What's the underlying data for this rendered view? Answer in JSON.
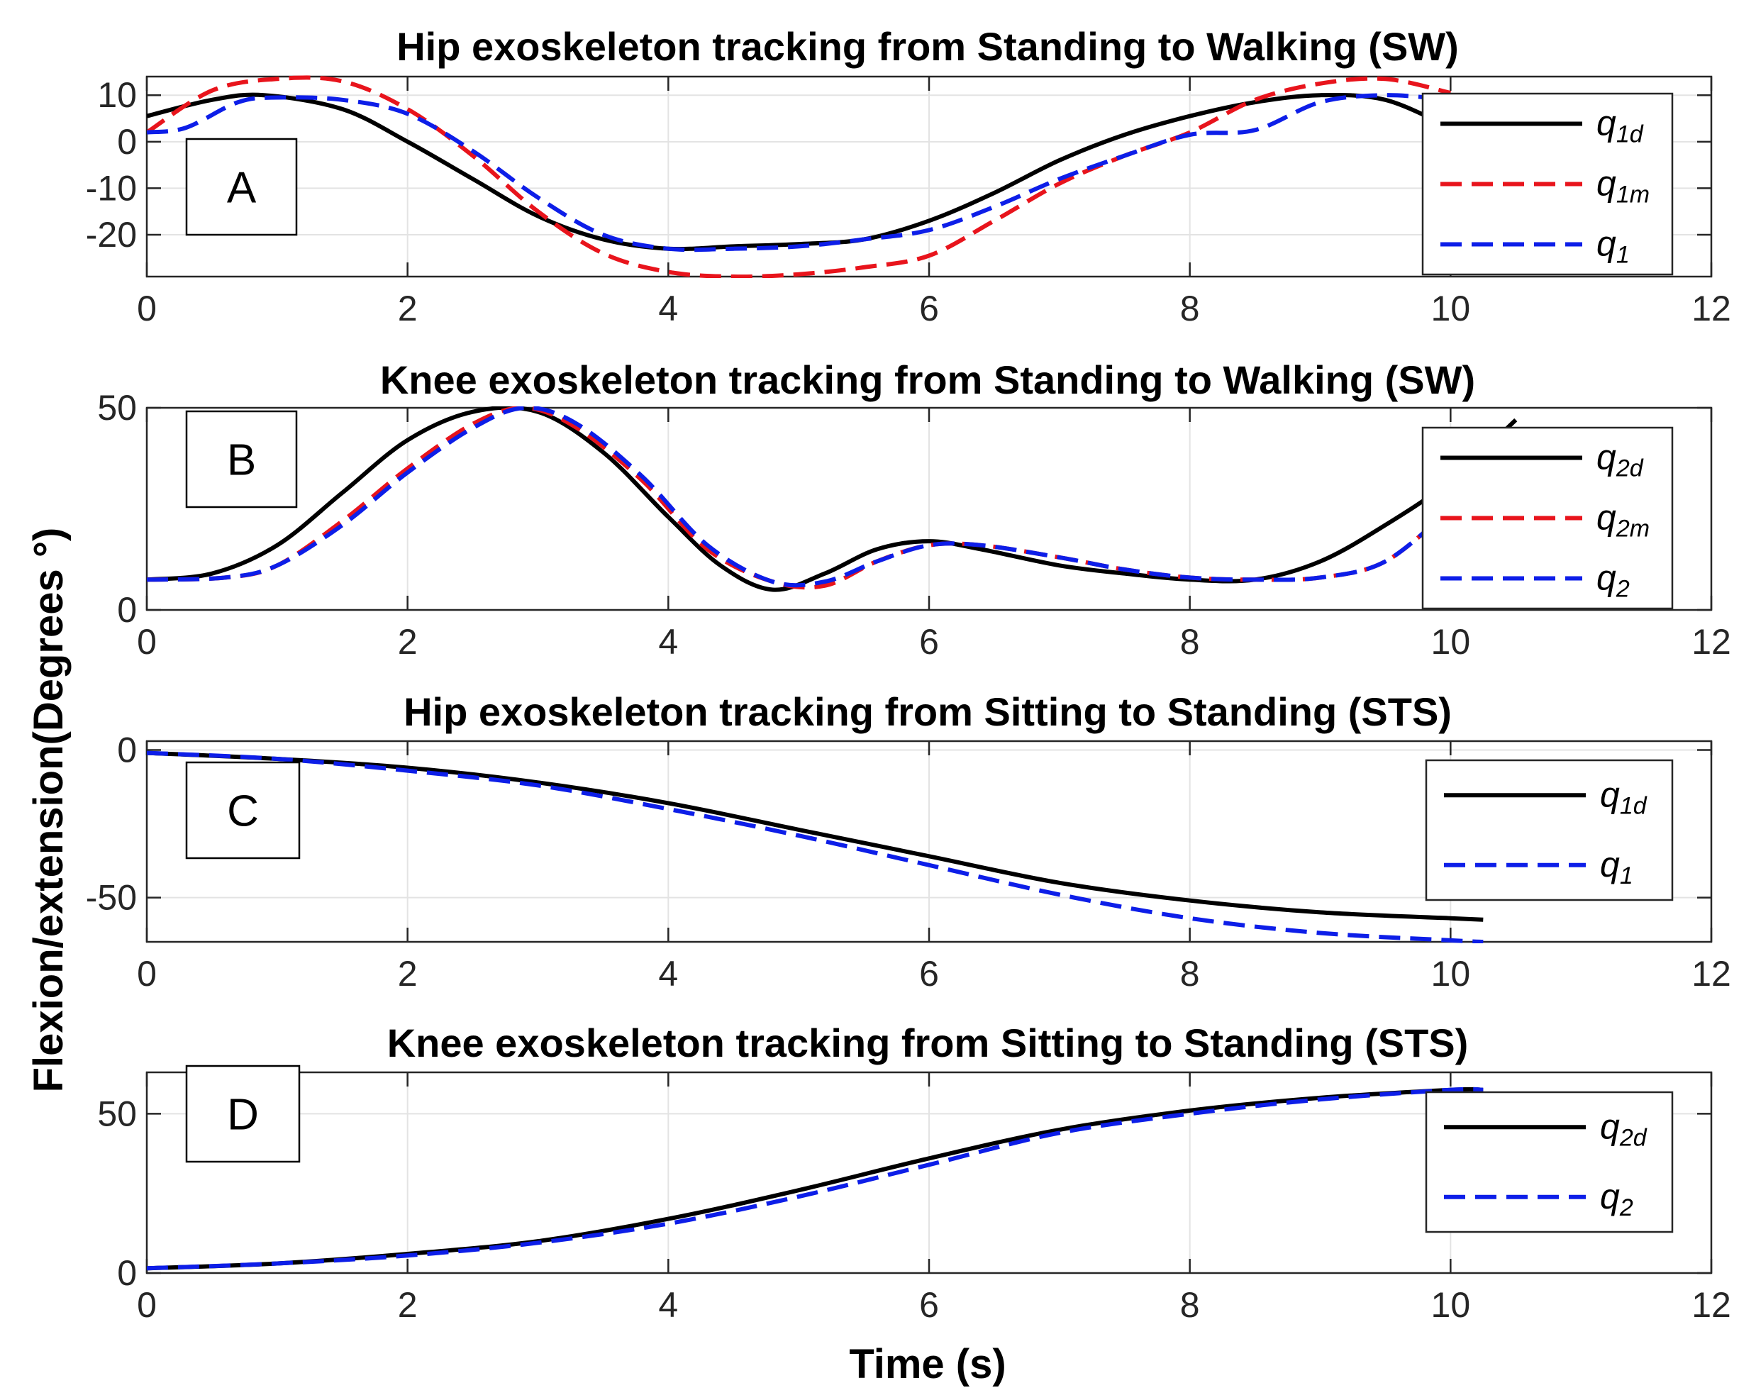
{
  "figure": {
    "xlabel": "Time (s)",
    "ylabel": "Flexion/extension(Degrees °)"
  },
  "chart_data": [
    {
      "type": "line",
      "panel": "A",
      "title": "Hip exoskeleton tracking from Standing to Walking (SW)",
      "xlim": [
        0,
        12
      ],
      "ylim": [
        -29,
        14
      ],
      "xticks": [
        0,
        2,
        4,
        6,
        8,
        10,
        12
      ],
      "yticks": [
        -20,
        -10,
        0,
        10
      ],
      "grid": true,
      "legend_position": "right",
      "series": [
        {
          "name": "q1d",
          "sym": "q",
          "sub": "1d",
          "color": "#000000",
          "dash": false,
          "x": [
            0,
            0.5,
            0.9,
            1.5,
            2,
            2.5,
            3,
            3.5,
            4,
            4.5,
            5,
            5.5,
            6,
            6.5,
            7,
            7.5,
            8,
            8.5,
            9,
            9.5,
            10
          ],
          "y": [
            5.5,
            9,
            10,
            7,
            0,
            -8,
            -16,
            -21,
            -23,
            -22.5,
            -22,
            -21,
            -17,
            -11,
            -4,
            1.5,
            5.5,
            8.5,
            10,
            9,
            3
          ]
        },
        {
          "name": "q1m",
          "sym": "q",
          "sub": "1m",
          "color": "#e8141c",
          "dash": true,
          "x": [
            0,
            0.5,
            1,
            1.5,
            2,
            2.5,
            3,
            3.5,
            4,
            4.5,
            5,
            5.5,
            6,
            6.5,
            7,
            7.5,
            8,
            8.5,
            9,
            9.5,
            10
          ],
          "y": [
            2,
            11,
            13.5,
            13,
            7,
            -3,
            -15,
            -24,
            -28,
            -29,
            -28.5,
            -27,
            -24.5,
            -17,
            -9,
            -3,
            2,
            9,
            12.5,
            13.5,
            10.5
          ]
        },
        {
          "name": "q1",
          "sym": "q",
          "sub": "1",
          "color": "#0d1ee8",
          "dash": true,
          "x": [
            0,
            0.3,
            0.7,
            1,
            1.5,
            2,
            2.5,
            3,
            3.5,
            4,
            4.5,
            5,
            5.5,
            6,
            6.5,
            7,
            7.5,
            8,
            8.5,
            9,
            9.5,
            10
          ],
          "y": [
            2,
            3,
            8.5,
            9.5,
            9,
            6,
            -2,
            -12,
            -20,
            -23,
            -23,
            -22.5,
            -21,
            -19,
            -14,
            -8,
            -3,
            1.5,
            2.5,
            8.5,
            10,
            9
          ]
        }
      ]
    },
    {
      "type": "line",
      "panel": "B",
      "title": "Knee exoskeleton tracking from Standing to Walking (SW)",
      "xlim": [
        0,
        12
      ],
      "ylim": [
        0,
        50
      ],
      "xticks": [
        0,
        2,
        4,
        6,
        8,
        10,
        12
      ],
      "yticks": [
        0,
        50
      ],
      "grid": true,
      "legend_position": "right",
      "series": [
        {
          "name": "q2d",
          "sym": "q",
          "sub": "2d",
          "color": "#000000",
          "dash": false,
          "x": [
            0,
            0.5,
            1,
            1.5,
            2,
            2.5,
            3,
            3.5,
            4,
            4.4,
            4.8,
            5.2,
            5.6,
            6,
            6.4,
            7,
            7.5,
            8,
            8.5,
            9,
            9.5,
            10,
            10.5
          ],
          "y": [
            7.5,
            9,
            16,
            29,
            42,
            49,
            49,
            39,
            23,
            11,
            5,
            9,
            15,
            17,
            15,
            11,
            9,
            7.5,
            7.5,
            12,
            21,
            32,
            47
          ]
        },
        {
          "name": "q2m",
          "sym": "q",
          "sub": "2m",
          "color": "#e8141c",
          "dash": true,
          "x": [
            0,
            0.6,
            1,
            1.5,
            2,
            2.5,
            2.9,
            3.3,
            3.8,
            4.3,
            4.8,
            5.2,
            5.6,
            6,
            6.4,
            7,
            7.5,
            8,
            8.5,
            9,
            9.5,
            10
          ],
          "y": [
            7.5,
            8,
            11,
            22,
            35,
            46,
            50,
            45,
            32,
            15,
            7,
            6,
            12,
            16,
            16,
            13,
            10,
            8,
            7.5,
            8,
            12,
            25
          ]
        },
        {
          "name": "q2",
          "sym": "q",
          "sub": "2",
          "color": "#0d1ee8",
          "dash": true,
          "x": [
            0,
            0.6,
            1,
            1.5,
            2,
            2.5,
            2.9,
            3.3,
            3.8,
            4.3,
            4.8,
            5.2,
            5.6,
            6,
            6.4,
            7,
            7.5,
            8,
            8.5,
            9,
            9.5,
            10
          ],
          "y": [
            7.5,
            8,
            11,
            21,
            34,
            45,
            50,
            46,
            33,
            16,
            7,
            7,
            12,
            16,
            16,
            13,
            10,
            8,
            7.5,
            8,
            12,
            25
          ]
        }
      ]
    },
    {
      "type": "line",
      "panel": "C",
      "title": "Hip exoskeleton tracking from Sitting to Standing (STS)",
      "xlim": [
        0,
        12
      ],
      "ylim": [
        -65,
        3
      ],
      "xticks": [
        0,
        2,
        4,
        6,
        8,
        10,
        12
      ],
      "yticks": [
        -50,
        0
      ],
      "grid": true,
      "legend_position": "right",
      "series": [
        {
          "name": "q1d",
          "sym": "q",
          "sub": "1d",
          "color": "#000000",
          "dash": false,
          "x": [
            0,
            1,
            2,
            3,
            4,
            5,
            6,
            7,
            8,
            9,
            10,
            10.25
          ],
          "y": [
            -1,
            -3,
            -6,
            -11,
            -18,
            -27,
            -36,
            -45,
            -51,
            -55,
            -57,
            -57.5
          ]
        },
        {
          "name": "q1",
          "sym": "q",
          "sub": "1",
          "color": "#0d1ee8",
          "dash": true,
          "x": [
            0,
            1,
            2,
            3,
            4,
            5,
            6,
            7,
            8,
            9,
            10,
            10.25
          ],
          "y": [
            -1,
            -3,
            -7,
            -12,
            -20,
            -29,
            -39,
            -49,
            -57,
            -62,
            -64.5,
            -65
          ]
        }
      ]
    },
    {
      "type": "line",
      "panel": "D",
      "title": "Knee exoskeleton tracking from Sitting to Standing (STS)",
      "xlim": [
        0,
        12
      ],
      "ylim": [
        0,
        63
      ],
      "xticks": [
        0,
        2,
        4,
        6,
        8,
        10,
        12
      ],
      "yticks": [
        0,
        50
      ],
      "grid": true,
      "legend_position": "right",
      "series": [
        {
          "name": "q2d",
          "sym": "q",
          "sub": "2d",
          "color": "#000000",
          "dash": false,
          "x": [
            0,
            1,
            2,
            3,
            4,
            5,
            6,
            7,
            8,
            9,
            10,
            10.25
          ],
          "y": [
            1.5,
            3,
            6,
            10,
            17,
            26,
            36,
            45,
            51,
            55,
            57.5,
            57.5
          ]
        },
        {
          "name": "q2",
          "sym": "q",
          "sub": "2",
          "color": "#0d1ee8",
          "dash": true,
          "x": [
            0,
            1,
            2,
            3,
            4,
            5,
            6,
            7,
            8,
            9,
            10,
            10.25
          ],
          "y": [
            1.5,
            3,
            5.5,
            9.5,
            15.5,
            24,
            34,
            44,
            50,
            54.5,
            57.5,
            57.5
          ]
        }
      ]
    }
  ]
}
